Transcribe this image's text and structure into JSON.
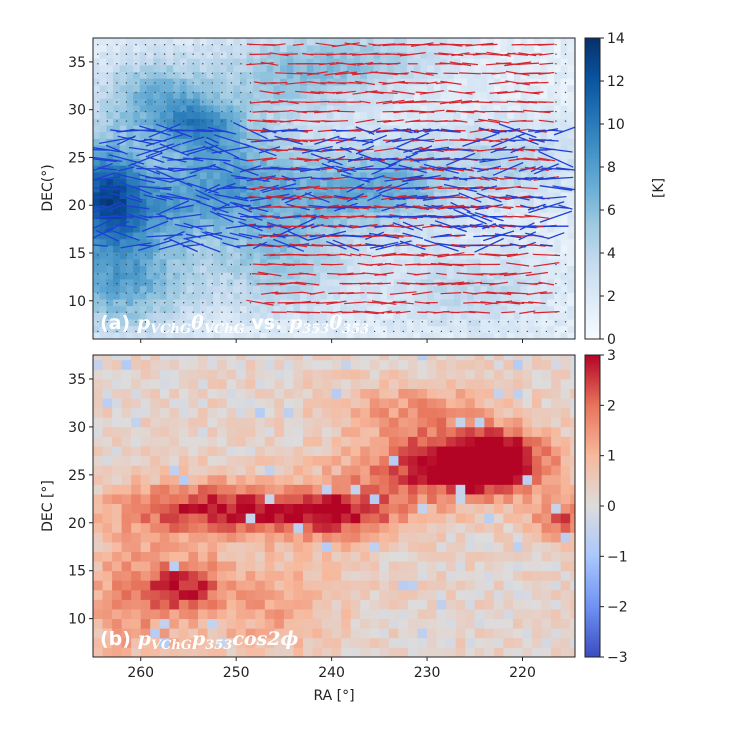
{
  "colors": {
    "blues": [
      "#f7fbff",
      "#deebf7",
      "#c6dbef",
      "#9ecae1",
      "#6baed6",
      "#4292c6",
      "#2171b5",
      "#08519c",
      "#08306b"
    ],
    "coolwarm": [
      "#3b4cc0",
      "#6f92f3",
      "#aac7fd",
      "#dddcdc",
      "#f7b89c",
      "#e7745b",
      "#b40426"
    ],
    "vec_vchg": "#1f3fd6",
    "vec_353": "#d8242e"
  },
  "chart_data": [
    {
      "type": "heatmap",
      "panel": "(a)",
      "label_parts": [
        {
          "t": "(a) ",
          "it": false
        },
        {
          "t": "p",
          "it": true
        },
        {
          "t": "VChG",
          "it": true,
          "sub": true
        },
        {
          "t": "θ",
          "it": true
        },
        {
          "t": "VChG",
          "it": true,
          "sub": true
        },
        {
          "t": " vs. ",
          "it": false
        },
        {
          "t": "p",
          "it": true
        },
        {
          "t": "353",
          "it": true,
          "sub": true
        },
        {
          "t": "θ",
          "it": true
        },
        {
          "t": "353",
          "it": true,
          "sub": true
        }
      ],
      "xlabel": "",
      "ylabel": "DEC(°)",
      "xlim": [
        265,
        214.5
      ],
      "ylim": [
        6,
        37.5
      ],
      "yticks": [
        10,
        15,
        20,
        25,
        30,
        35
      ],
      "xticks": [
        260,
        250,
        240,
        230,
        220
      ],
      "colorbar": {
        "label": "[K]",
        "ticks": [
          0,
          2,
          4,
          6,
          8,
          10,
          12,
          14
        ],
        "vmin": 0,
        "vmax": 14,
        "cmap": "blues"
      },
      "background_intensity": {
        "base": 1.4,
        "blobs": [
          {
            "ra": 264,
            "dec": 21,
            "amp": 9,
            "sra": 3,
            "sdec": 4
          },
          {
            "ra": 259,
            "dec": 31,
            "amp": 5,
            "sra": 4,
            "sdec": 3
          },
          {
            "ra": 254,
            "dec": 28,
            "amp": 6,
            "sra": 3,
            "sdec": 2
          },
          {
            "ra": 256,
            "dec": 20,
            "amp": 5,
            "sra": 6,
            "sdec": 3
          },
          {
            "ra": 262,
            "dec": 12,
            "amp": 6,
            "sra": 5,
            "sdec": 4
          },
          {
            "ra": 250,
            "dec": 24,
            "amp": 4,
            "sra": 5,
            "sdec": 3
          },
          {
            "ra": 245,
            "dec": 33,
            "amp": 4,
            "sra": 6,
            "sdec": 3
          },
          {
            "ra": 240,
            "dec": 21,
            "amp": 4,
            "sra": 5,
            "sdec": 3
          },
          {
            "ra": 233,
            "dec": 22,
            "amp": 4,
            "sra": 4,
            "sdec": 3
          },
          {
            "ra": 246,
            "dec": 14,
            "amp": 4,
            "sra": 5,
            "sdec": 4
          },
          {
            "ra": 236,
            "dec": 35,
            "amp": 3,
            "sra": 6,
            "sdec": 2
          },
          {
            "ra": 222,
            "dec": 24,
            "amp": 3,
            "sra": 5,
            "sdec": 3
          },
          {
            "ra": 226,
            "dec": 11,
            "amp": 2.5,
            "sra": 6,
            "sdec": 3
          }
        ]
      },
      "vectors": {
        "red_band": {
          "ra": [
            248,
            217
          ],
          "dec": [
            8,
            37
          ]
        },
        "blue_band": {
          "ra": [
            265,
            215
          ],
          "dec": [
            15,
            28
          ]
        },
        "grid_step_deg": 1.0
      }
    },
    {
      "type": "heatmap",
      "panel": "(b)",
      "label_parts": [
        {
          "t": "(b) ",
          "it": false
        },
        {
          "t": "p",
          "it": true
        },
        {
          "t": "VChG",
          "it": true,
          "sub": true
        },
        {
          "t": "p",
          "it": true
        },
        {
          "t": "353",
          "it": true,
          "sub": true
        },
        {
          "t": "cos2ϕ",
          "it": true
        }
      ],
      "xlabel": "RA [°]",
      "ylabel": "DEC [°]",
      "xlim": [
        265,
        214.5
      ],
      "ylim": [
        6,
        37.5
      ],
      "yticks": [
        10,
        15,
        20,
        25,
        30,
        35
      ],
      "xticks": [
        260,
        250,
        240,
        230,
        220
      ],
      "cell_size_deg": 1.0,
      "colorbar": {
        "label": "",
        "ticks": [
          3,
          2,
          1,
          0,
          -1,
          -2,
          -3
        ],
        "vmin": -3,
        "vmax": 3,
        "cmap": "coolwarm"
      },
      "value_model": {
        "base": 0.25,
        "blobs": [
          {
            "ra": 253,
            "dec": 21.5,
            "amp": 2.6,
            "sra": 7,
            "sdec": 2
          },
          {
            "ra": 240,
            "dec": 21,
            "amp": 2.2,
            "sra": 5,
            "sdec": 2
          },
          {
            "ra": 228,
            "dec": 26,
            "amp": 3.0,
            "sra": 7,
            "sdec": 2.5
          },
          {
            "ra": 224,
            "dec": 26.5,
            "amp": 2.4,
            "sra": 3,
            "sdec": 2
          },
          {
            "ra": 217,
            "dec": 20.5,
            "amp": 2.0,
            "sra": 2,
            "sdec": 1.5
          },
          {
            "ra": 256,
            "dec": 13.5,
            "amp": 2.0,
            "sra": 3,
            "sdec": 2
          },
          {
            "ra": 262,
            "dec": 12,
            "amp": 1.3,
            "sra": 4,
            "sdec": 5
          },
          {
            "ra": 232,
            "dec": 32,
            "amp": 1.2,
            "sra": 6,
            "sdec": 2
          },
          {
            "ra": 247,
            "dec": 11,
            "amp": 1.0,
            "sra": 5,
            "sdec": 4
          }
        ]
      }
    }
  ]
}
